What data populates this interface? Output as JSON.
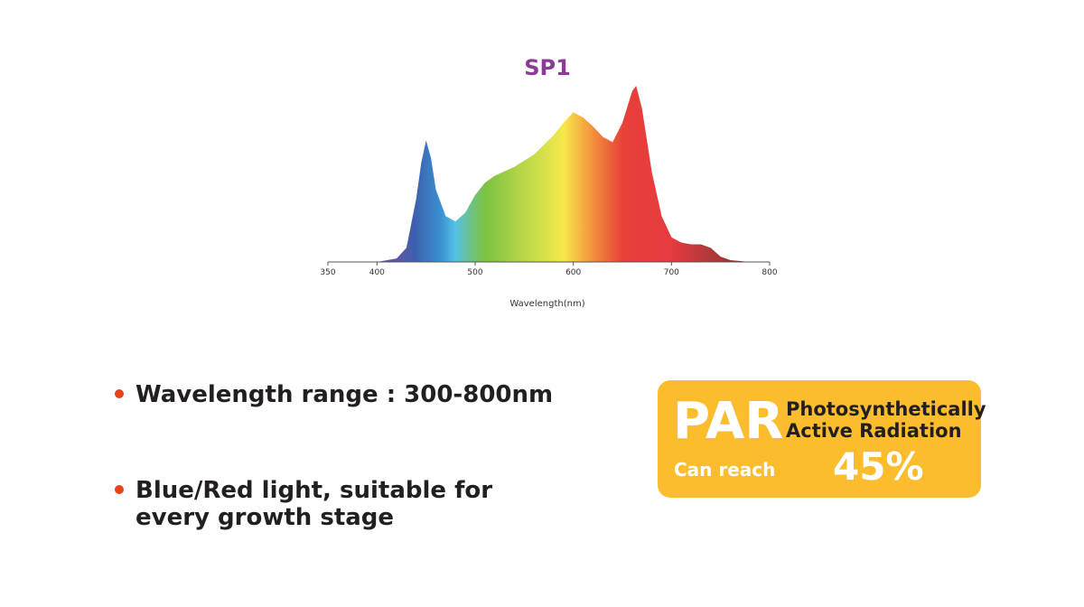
{
  "chart_data": {
    "type": "area",
    "title": "SP1",
    "x_label": "Wavelength(nm)",
    "x": [
      400,
      420,
      430,
      440,
      445,
      450,
      455,
      460,
      470,
      480,
      490,
      500,
      510,
      520,
      540,
      560,
      580,
      590,
      600,
      610,
      620,
      630,
      640,
      650,
      660,
      664,
      670,
      680,
      690,
      700,
      710,
      720,
      730,
      740,
      750,
      760,
      780
    ],
    "values": [
      0,
      2,
      8,
      36,
      56,
      69,
      59,
      41,
      26,
      23,
      28,
      38,
      45,
      49,
      54,
      61,
      72,
      79,
      85,
      82,
      77,
      71,
      68,
      79,
      97,
      100,
      87,
      51,
      26,
      14,
      11,
      10,
      10,
      8,
      3,
      1,
      0
    ],
    "xlim": [
      350,
      800
    ],
    "xticks": [
      350,
      400,
      500,
      600,
      700,
      800
    ]
  },
  "features": [
    [
      "Wavelength range : 300-800nm"
    ],
    [
      "Blue/Red light, suitable for",
      "every growth stage"
    ]
  ],
  "par_box": {
    "acronym": "PAR",
    "name": [
      "Photosynthetically",
      "Active Radiation"
    ],
    "prefix": "Can reach",
    "amount": "45%"
  }
}
